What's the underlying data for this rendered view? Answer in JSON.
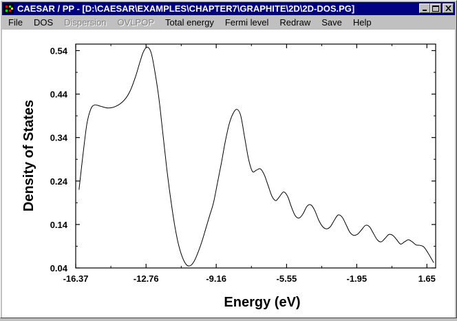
{
  "window": {
    "title": "CAESAR / PP - [D:\\CAESAR\\EXAMPLES\\CHAPTER7\\GRAPHITE\\2D\\2D-DOS.PG]",
    "app_icon": "caesar-app-icon",
    "buttons": [
      "minimize-icon",
      "maximize-icon",
      "close-icon"
    ]
  },
  "menu": {
    "items": [
      {
        "label": "File",
        "enabled": true
      },
      {
        "label": "DOS",
        "enabled": true
      },
      {
        "label": "Dispersion",
        "enabled": false
      },
      {
        "label": "OVLPOP",
        "enabled": false
      },
      {
        "label": "Total energy",
        "enabled": true
      },
      {
        "label": "Fermi level",
        "enabled": true
      },
      {
        "label": "Redraw",
        "enabled": true
      },
      {
        "label": "Save",
        "enabled": true
      },
      {
        "label": "Help",
        "enabled": true
      }
    ]
  },
  "chart_data": {
    "type": "line",
    "title": "",
    "xlabel": "Energy (eV)",
    "ylabel": "Density of States",
    "xlim": [
      -16.37,
      2.1
    ],
    "ylim": [
      0.04,
      0.555
    ],
    "xticks": [
      -16.37,
      -12.76,
      -9.16,
      -5.55,
      -1.95,
      1.65
    ],
    "xtick_labels": [
      "-16.37",
      "-12.76",
      "-9.16",
      "-5.55",
      "-1.95",
      "1.65"
    ],
    "yticks": [
      0.04,
      0.14,
      0.24,
      0.34,
      0.44,
      0.54
    ],
    "ytick_labels": [
      "0.04",
      "0.14",
      "0.24",
      "0.34",
      "0.44",
      "0.54"
    ],
    "grid": false,
    "legend": "none",
    "line_color": "#000000",
    "series": [
      {
        "x": [
          -16.2,
          -16.0,
          -15.8,
          -15.6,
          -15.4,
          -15.1,
          -14.7,
          -14.3,
          -13.9,
          -13.6,
          -13.3,
          -13.1,
          -12.9,
          -12.7,
          -12.5,
          -12.3,
          -12.1,
          -11.9,
          -11.7,
          -11.5,
          -11.3,
          -11.1,
          -10.9,
          -10.7,
          -10.5,
          -10.3,
          -10.1,
          -9.9,
          -9.7,
          -9.5,
          -9.3,
          -9.1,
          -8.9,
          -8.7,
          -8.5,
          -8.3,
          -8.1,
          -7.9,
          -7.7,
          -7.5,
          -7.3,
          -7.1,
          -6.9,
          -6.7,
          -6.5,
          -6.3,
          -6.1,
          -5.9,
          -5.7,
          -5.5,
          -5.3,
          -5.1,
          -4.9,
          -4.7,
          -4.5,
          -4.3,
          -4.1,
          -3.9,
          -3.7,
          -3.5,
          -3.3,
          -3.1,
          -2.9,
          -2.7,
          -2.5,
          -2.3,
          -2.1,
          -1.9,
          -1.7,
          -1.5,
          -1.3,
          -1.1,
          -0.9,
          -0.7,
          -0.5,
          -0.3,
          -0.1,
          0.1,
          0.3,
          0.5,
          0.7,
          0.9,
          1.1,
          1.3,
          1.5,
          1.7,
          1.9,
          2.0
        ],
        "y": [
          0.22,
          0.3,
          0.37,
          0.405,
          0.415,
          0.412,
          0.408,
          0.412,
          0.425,
          0.445,
          0.48,
          0.51,
          0.537,
          0.548,
          0.535,
          0.49,
          0.43,
          0.35,
          0.27,
          0.2,
          0.14,
          0.095,
          0.065,
          0.048,
          0.045,
          0.055,
          0.075,
          0.1,
          0.13,
          0.16,
          0.19,
          0.235,
          0.28,
          0.33,
          0.37,
          0.395,
          0.405,
          0.39,
          0.34,
          0.29,
          0.262,
          0.265,
          0.268,
          0.255,
          0.23,
          0.205,
          0.195,
          0.205,
          0.215,
          0.205,
          0.18,
          0.16,
          0.155,
          0.165,
          0.182,
          0.185,
          0.172,
          0.15,
          0.135,
          0.13,
          0.135,
          0.15,
          0.162,
          0.157,
          0.14,
          0.122,
          0.115,
          0.118,
          0.128,
          0.138,
          0.135,
          0.12,
          0.105,
          0.1,
          0.108,
          0.117,
          0.115,
          0.105,
          0.095,
          0.1,
          0.105,
          0.1,
          0.093,
          0.092,
          0.088,
          0.075,
          0.06,
          0.052
        ]
      }
    ]
  }
}
